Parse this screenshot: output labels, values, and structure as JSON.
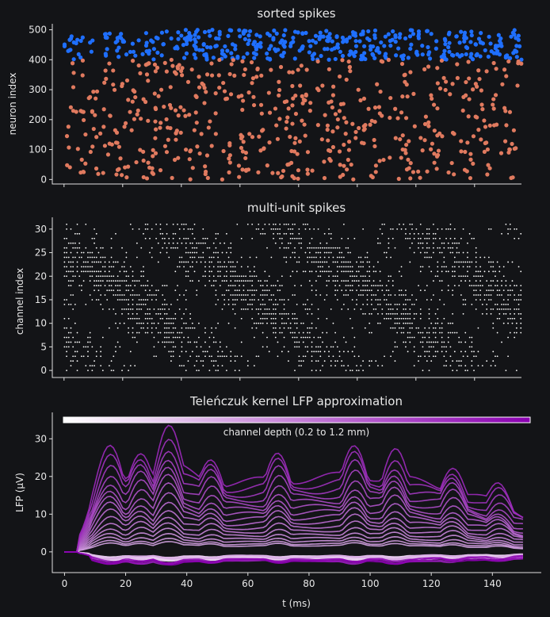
{
  "chart_data": [
    {
      "type": "scatter",
      "title": "sorted spikes",
      "xlabel": "",
      "ylabel": "neuron index",
      "xlim": [
        -4,
        150
      ],
      "ylim": [
        -15,
        520
      ],
      "yticks": [
        0,
        100,
        200,
        300,
        400,
        500
      ],
      "series_colors": [
        "#1f6fff",
        "#e07a5f"
      ],
      "groups": [
        {
          "index_range": [
            400,
            500
          ],
          "color": "#1f6fff",
          "spike_count": 420
        },
        {
          "index_range": [
            0,
            400
          ],
          "color": "#e07a5f",
          "spike_count": 560
        }
      ]
    },
    {
      "type": "scatter",
      "title": "multi-unit spikes",
      "xlabel": "",
      "ylabel": "channel index",
      "xlim": [
        -4,
        150
      ],
      "ylim": [
        -1.5,
        32.5
      ],
      "yticks": [
        0,
        5,
        10,
        15,
        20,
        25,
        30
      ],
      "channels": 32,
      "color": "#ffffff"
    },
    {
      "type": "line",
      "title": "Teleńczuk kernel LFP approximation",
      "xlabel": "t (ms)",
      "ylabel": "LFP (μV)",
      "xlim": [
        -4,
        156
      ],
      "ylim": [
        -5.5,
        37
      ],
      "xticks": [
        0,
        20,
        40,
        60,
        80,
        100,
        120,
        140
      ],
      "yticks": [
        0,
        10,
        20,
        30
      ],
      "colorbar_label": "channel depth (0.2 to 1.2 mm)",
      "colormap": [
        "#ffffff",
        "#8a00b0"
      ],
      "n_channels": 32,
      "t_range": [
        0,
        150
      ],
      "envelope_peaks": [
        {
          "t": 15,
          "v": 28
        },
        {
          "t": 25,
          "v": 28
        },
        {
          "t": 34,
          "v": 34
        },
        {
          "t": 48,
          "v": 26
        },
        {
          "t": 70,
          "v": 27
        },
        {
          "t": 95,
          "v": 29
        },
        {
          "t": 108,
          "v": 28
        },
        {
          "t": 127,
          "v": 24
        },
        {
          "t": 142,
          "v": 18
        }
      ]
    }
  ]
}
